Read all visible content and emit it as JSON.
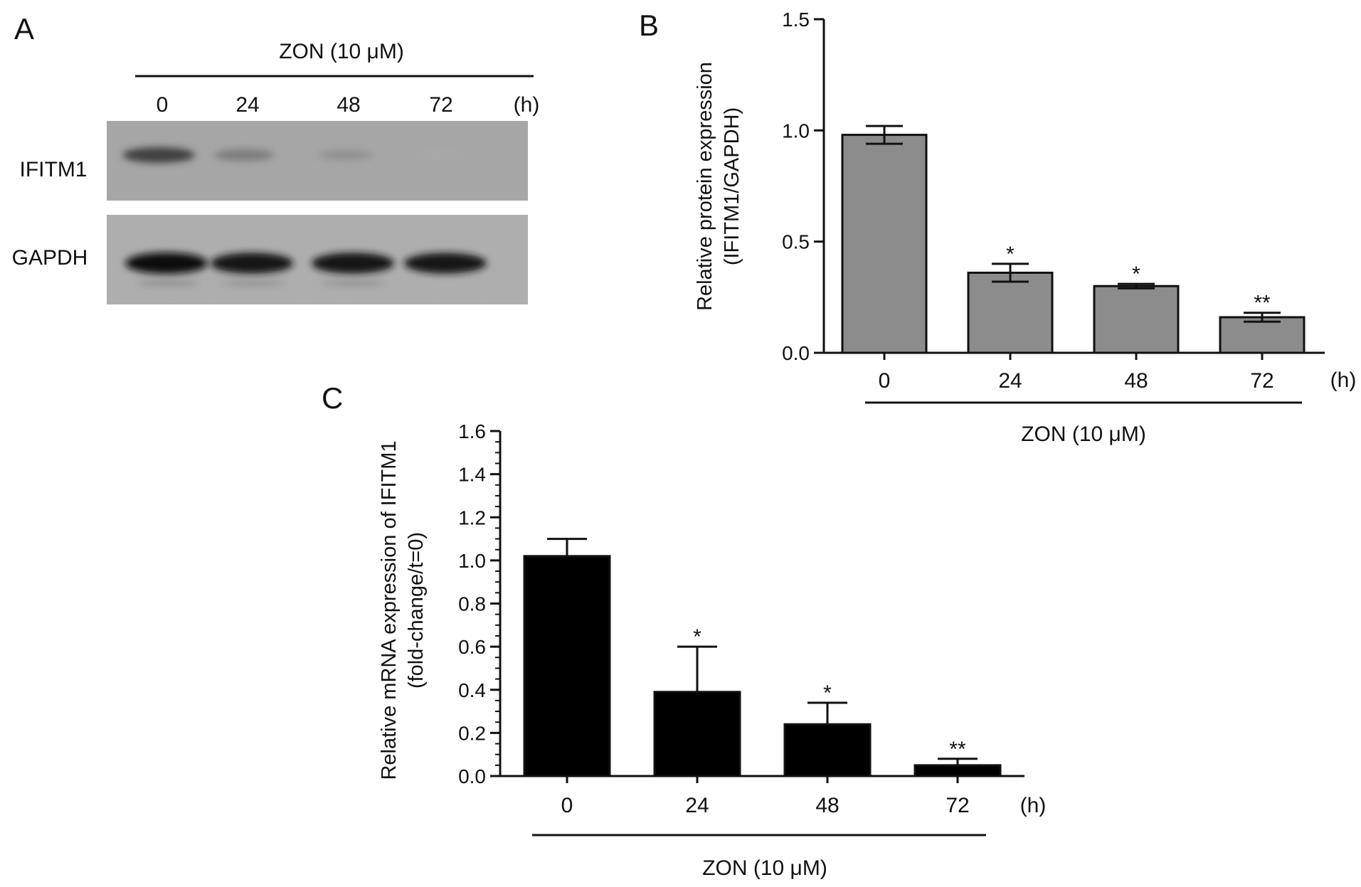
{
  "panels": {
    "A": {
      "letter": "A",
      "treatment": "ZON (10 μM)",
      "lanes": [
        "0",
        "24",
        "48",
        "72"
      ],
      "unit": "(h)",
      "blots": [
        {
          "label": "IFITM1",
          "intensity": [
            0.85,
            0.45,
            0.3,
            0.15
          ]
        },
        {
          "label": "GAPDH",
          "intensity": [
            1.0,
            0.95,
            0.95,
            0.9
          ]
        }
      ]
    },
    "B": {
      "letter": "B",
      "treatment": "ZON (10 μM)",
      "unit": "(h)"
    },
    "C": {
      "letter": "C",
      "treatment": "ZON (10 μM)",
      "unit": "(h)"
    }
  },
  "chart_data": [
    {
      "panel": "B",
      "type": "bar",
      "categories": [
        "0",
        "24",
        "48",
        "72"
      ],
      "values": [
        0.98,
        0.36,
        0.3,
        0.16
      ],
      "errors": [
        0.04,
        0.04,
        0.01,
        0.02
      ],
      "significance": [
        "",
        "*",
        "*",
        "**"
      ],
      "ylabel": [
        "Relative protein expression",
        "(IFITM1/GAPDH)"
      ],
      "xlabel": "",
      "ylim": [
        0,
        1.5
      ],
      "yticks": [
        "0.0",
        "0.5",
        "1.0",
        "1.5"
      ],
      "bar_color": "#8c8c8c",
      "grid": false
    },
    {
      "panel": "C",
      "type": "bar",
      "categories": [
        "0",
        "24",
        "48",
        "72"
      ],
      "values": [
        1.02,
        0.39,
        0.24,
        0.05
      ],
      "errors": [
        0.08,
        0.21,
        0.1,
        0.03
      ],
      "significance": [
        "",
        "*",
        "*",
        "**"
      ],
      "ylabel": [
        "Relative mRNA expression of IFITM1",
        "(fold-change/t=0)"
      ],
      "xlabel": "",
      "ylim": [
        0,
        1.6
      ],
      "yticks": [
        "0.0",
        "0.2",
        "0.4",
        "0.6",
        "0.8",
        "1.0",
        "1.2",
        "1.4",
        "1.6"
      ],
      "bar_color": "#000000",
      "grid": false
    }
  ]
}
